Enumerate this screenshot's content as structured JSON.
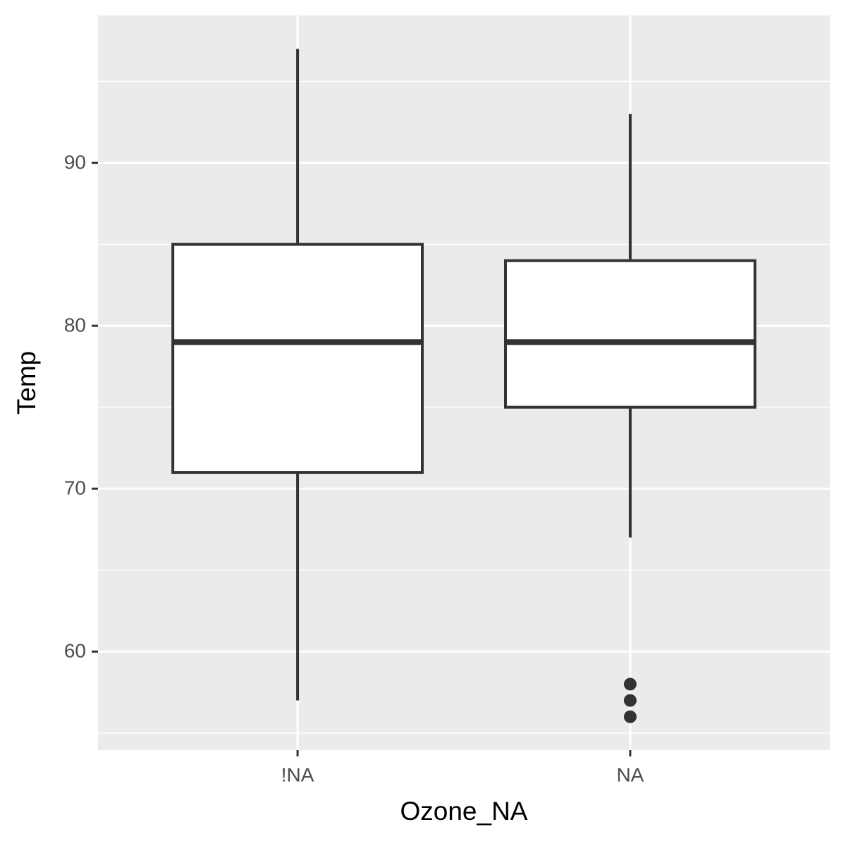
{
  "chart_data": {
    "type": "boxplot",
    "x_label": "Ozone_NA",
    "y_label": "Temp",
    "categories": [
      "!NA",
      "NA"
    ],
    "boxes": [
      {
        "whislo": 57,
        "q1": 71,
        "med": 79,
        "q3": 85,
        "whishi": 97,
        "outliers": []
      },
      {
        "whislo": 67,
        "q1": 75,
        "med": 79,
        "q3": 84,
        "whishi": 93,
        "outliers": [
          58,
          57,
          56
        ]
      }
    ],
    "ylim": [
      53.95,
      99.05
    ],
    "yticks": [
      60,
      70,
      80,
      90
    ],
    "yminorticks": [
      55,
      65,
      75,
      85,
      95
    ],
    "grid": true,
    "box_fill": "#ffffff",
    "line_color": "#333333",
    "panel_color": "#ebebeb"
  }
}
